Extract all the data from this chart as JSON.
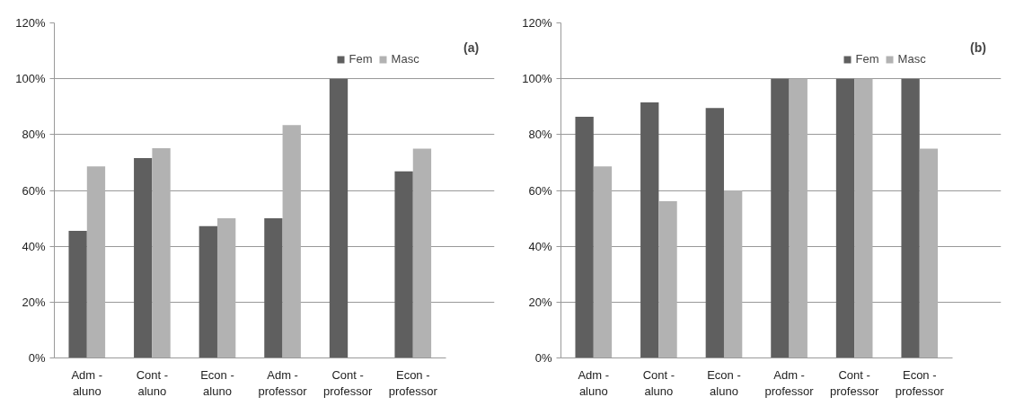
{
  "chart_data": [
    {
      "type": "bar",
      "categories": [
        "Adm -\naluno",
        "Cont -\naluno",
        "Econ -\naluno",
        "Adm -\nprofessor",
        "Cont -\nprofessor",
        "Econ -\nprofessor"
      ],
      "series": [
        {
          "name": "Fem",
          "color": "#5f5f5f",
          "values": [
            45.5,
            71.6,
            47.2,
            50,
            100,
            66.8
          ]
        },
        {
          "name": "Masc",
          "color": "#b2b2b2",
          "values": [
            68.6,
            75.1,
            50,
            83.4,
            0,
            75
          ]
        }
      ],
      "ylim": [
        0,
        120
      ],
      "yticks": [
        {
          "value": 0,
          "label": "0%"
        },
        {
          "value": 20,
          "label": "20%"
        },
        {
          "value": 40,
          "label": "40%"
        },
        {
          "value": 60,
          "label": "60%"
        },
        {
          "value": 80,
          "label": "80%"
        },
        {
          "value": 100,
          "label": "100%"
        },
        {
          "value": 120,
          "label": "120%"
        }
      ],
      "grid": "y",
      "legend": "top right",
      "annotations": [
        "(a)"
      ]
    },
    {
      "type": "bar",
      "categories": [
        "Adm -\naluno",
        "Cont -\naluno",
        "Econ -\naluno",
        "Adm -\nprofessor",
        "Cont -\nprofessor",
        "Econ -\nprofessor"
      ],
      "series": [
        {
          "name": "Fem",
          "color": "#5f5f5f",
          "values": [
            86.4,
            91.5,
            89.5,
            100,
            100,
            100
          ]
        },
        {
          "name": "Masc",
          "color": "#b2b2b2",
          "values": [
            68.6,
            56.1,
            60,
            100,
            100,
            75
          ]
        }
      ],
      "ylim": [
        0,
        120
      ],
      "yticks": [
        {
          "value": 0,
          "label": "0%"
        },
        {
          "value": 20,
          "label": "20%"
        },
        {
          "value": 40,
          "label": "40%"
        },
        {
          "value": 60,
          "label": "60%"
        },
        {
          "value": 80,
          "label": "80%"
        },
        {
          "value": 100,
          "label": "100%"
        },
        {
          "value": 120,
          "label": "120%"
        }
      ],
      "grid": "y",
      "legend": "top right",
      "annotations": [
        "(b)"
      ]
    }
  ]
}
